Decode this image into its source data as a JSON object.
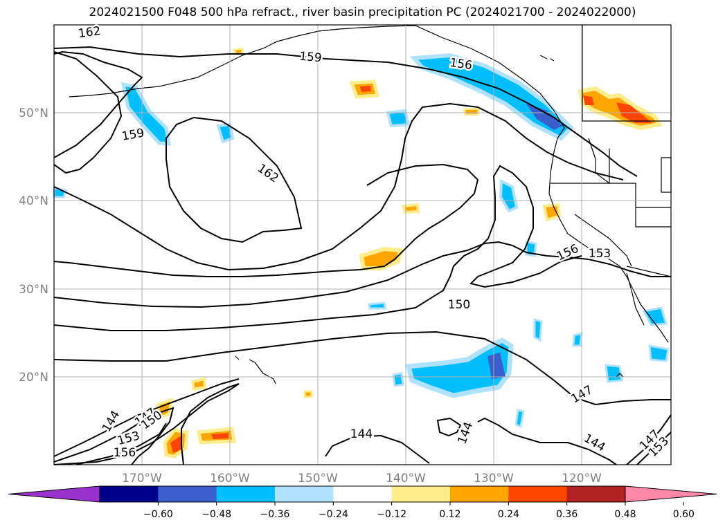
{
  "title": "2024021500 F048 500 hPa refract., river basin precipitation PC (2024021700 - 2024022000)",
  "lat_labels": [
    "50°N",
    "40°N",
    "30°N",
    "20°N"
  ],
  "lon_labels": [
    "170°W",
    "160°W",
    "150°W",
    "140°W",
    "130°W",
    "120°W"
  ],
  "colorbar": {
    "colors": [
      "#9932cc",
      "#00008b",
      "#3a5fcd",
      "#00bfff",
      "#b0e2ff",
      "#ffffff",
      "#ffec8b",
      "#ffa500",
      "#ff4500",
      "#b22222",
      "#ff88aa"
    ],
    "tick_labels": [
      "−0.60",
      "−0.48",
      "−0.36",
      "−0.24",
      "−0.12",
      "0.12",
      "0.24",
      "0.36",
      "0.48",
      "0.60"
    ]
  },
  "contour_labels": [
    "162",
    "159",
    "156",
    "153",
    "150",
    "147",
    "144"
  ]
}
